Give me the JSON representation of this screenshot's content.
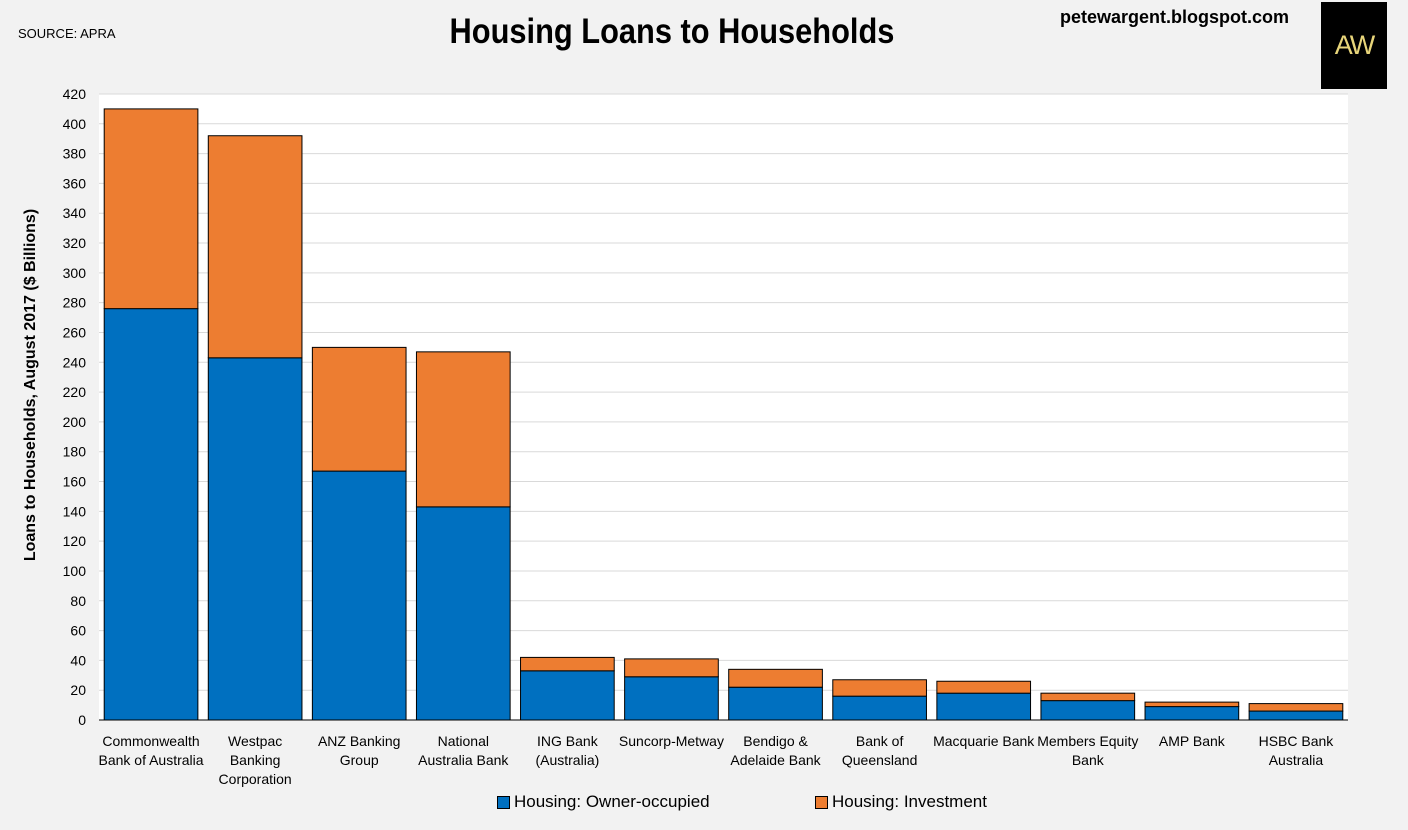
{
  "header": {
    "source": "SOURCE: APRA",
    "title": "Housing Loans to Households",
    "blog": "petewargent.blogspot.com",
    "logo_text": "AW"
  },
  "colors": {
    "owner_occupied": "#0070c0",
    "investment": "#ed7d31",
    "grid": "#d9d9d9",
    "plot_bg": "#ffffff",
    "page_bg": "#f2f2f2"
  },
  "chart_data": {
    "type": "bar",
    "stacked": true,
    "title": "Housing Loans to Households",
    "ylabel": "Loans to Households, August 2017 ($ Billions)",
    "xlabel": "",
    "ylim": [
      0,
      420
    ],
    "ytick_step": 20,
    "grid": true,
    "legend_position": "bottom",
    "categories": [
      "Commonwealth Bank of Australia",
      "Westpac Banking Corporation",
      "ANZ Banking Group",
      "National Australia Bank",
      "ING Bank (Australia)",
      "Suncorp-Metway",
      "Bendigo & Adelaide Bank",
      "Bank of Queensland",
      "Macquarie Bank",
      "Members Equity Bank",
      "AMP Bank",
      "HSBC Bank Australia"
    ],
    "category_label_lines": [
      [
        "Commonwealth",
        "Bank of Australia"
      ],
      [
        "Westpac",
        "Banking",
        "Corporation"
      ],
      [
        "ANZ Banking",
        "Group"
      ],
      [
        "National",
        "Australia Bank"
      ],
      [
        "ING Bank",
        "(Australia)"
      ],
      [
        "Suncorp-Metway"
      ],
      [
        "Bendigo &",
        "Adelaide Bank"
      ],
      [
        "Bank of",
        "Queensland"
      ],
      [
        "Macquarie Bank"
      ],
      [
        "Members Equity",
        "Bank"
      ],
      [
        "AMP Bank"
      ],
      [
        "HSBC Bank",
        "Australia"
      ]
    ],
    "series": [
      {
        "name": "Housing: Owner-occupied",
        "color": "#0070c0",
        "values": [
          276,
          243,
          167,
          143,
          33,
          29,
          22,
          16,
          18,
          13,
          9,
          6
        ]
      },
      {
        "name": "Housing: Investment",
        "color": "#ed7d31",
        "values": [
          134,
          149,
          83,
          104,
          9,
          12,
          12,
          11,
          8,
          5,
          3,
          5
        ]
      }
    ]
  }
}
